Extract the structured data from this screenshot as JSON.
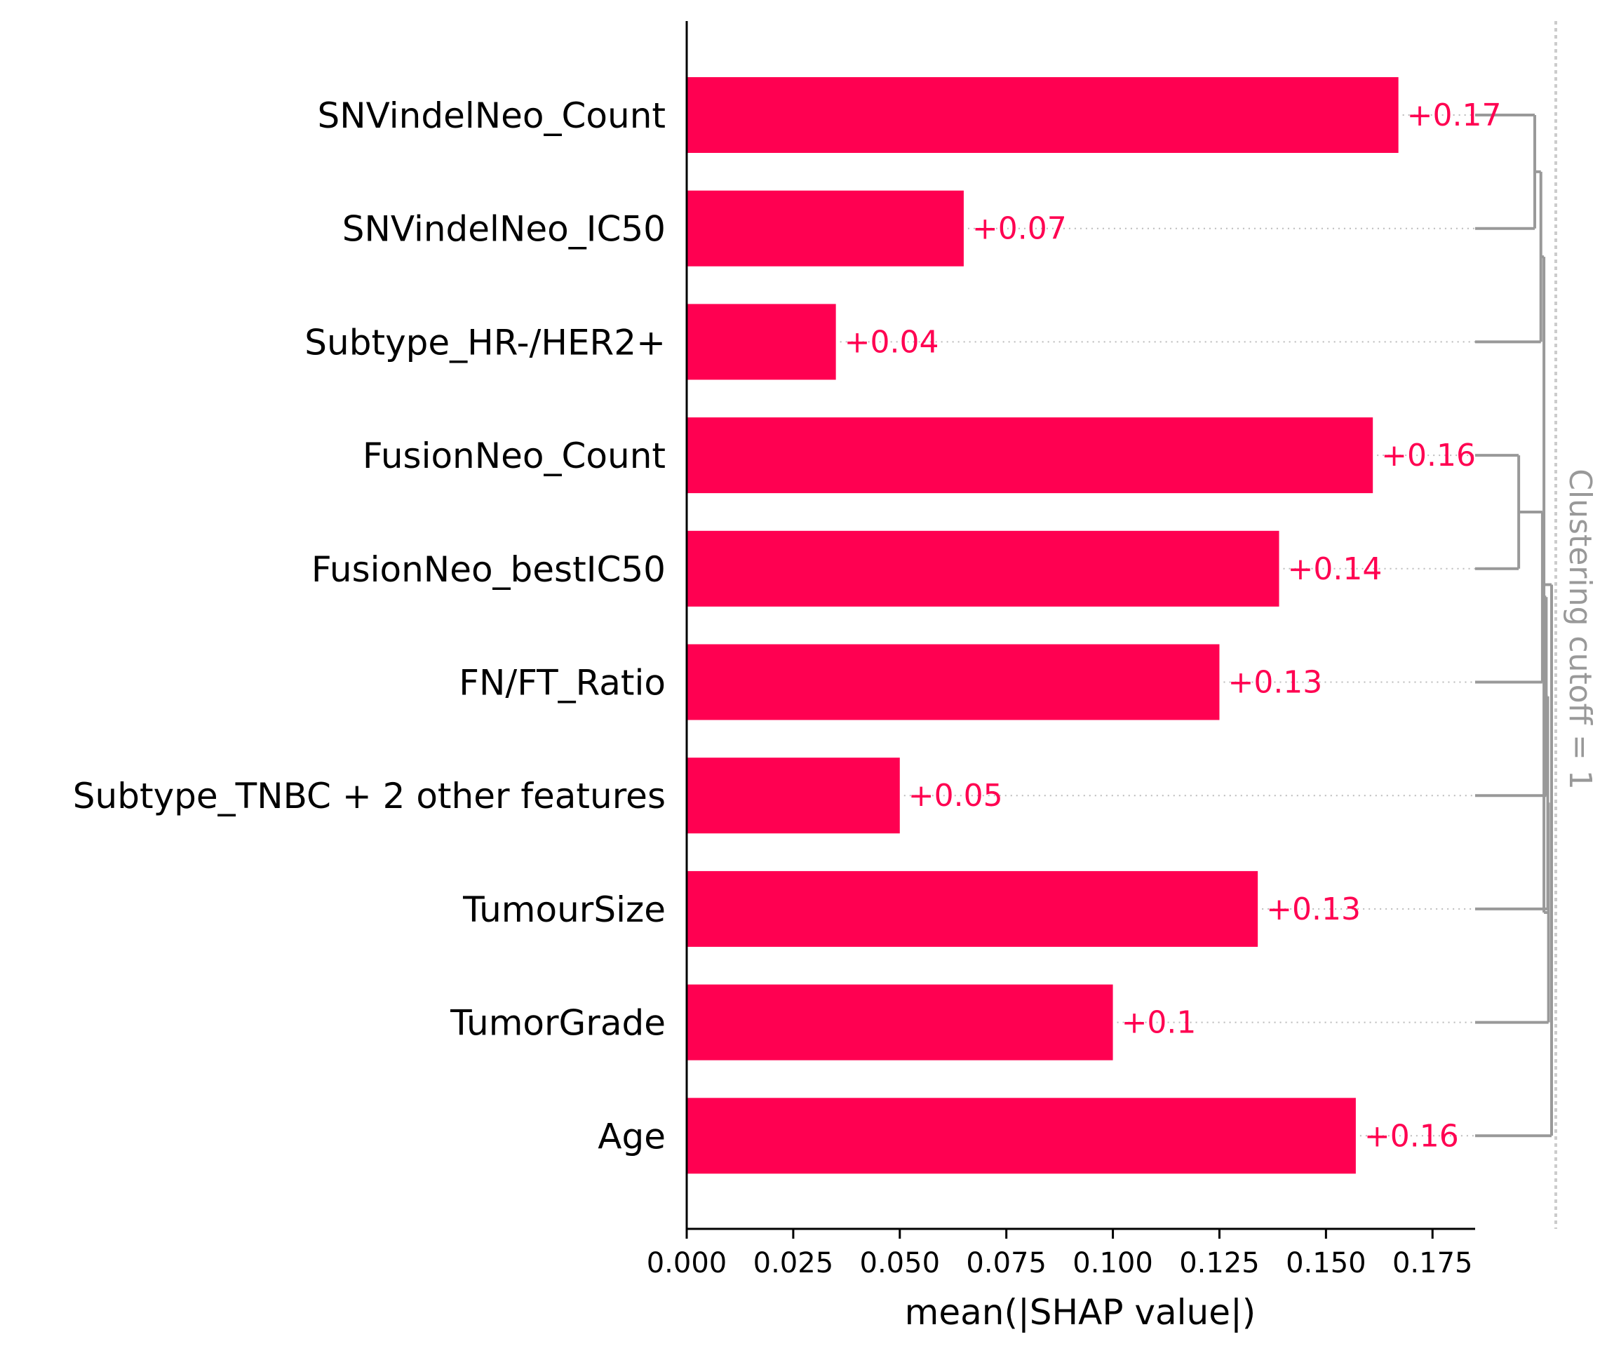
{
  "chart_data": {
    "type": "bar",
    "orientation": "horizontal",
    "categories": [
      "SNVindelNeo_Count",
      "SNVindelNeo_IC50",
      "Subtype_HR-/HER2+",
      "FusionNeo_Count",
      "FusionNeo_bestIC50",
      "FN/FT_Ratio",
      "Subtype_TNBC + 2 other features",
      "TumourSize",
      "TumorGrade",
      "Age"
    ],
    "values": [
      0.167,
      0.065,
      0.035,
      0.161,
      0.139,
      0.125,
      0.05,
      0.134,
      0.1,
      0.157
    ],
    "value_labels": [
      "+0.17",
      "+0.07",
      "+0.04",
      "+0.16",
      "+0.14",
      "+0.13",
      "+0.05",
      "+0.13",
      "+0.1",
      "+0.16"
    ],
    "xlabel": "mean(|SHAP value|)",
    "xlim": [
      0,
      0.185
    ],
    "xticks": [
      0.0,
      0.025,
      0.05,
      0.075,
      0.1,
      0.125,
      0.15,
      0.175
    ],
    "xtick_labels": [
      "0.000",
      "0.025",
      "0.050",
      "0.075",
      "0.100",
      "0.125",
      "0.150",
      "0.175"
    ],
    "bar_color": "#ff0051",
    "grid": false,
    "cutoff_label": "Clustering cutoff = 1",
    "dendrogram_color": "#999999",
    "clustering_merges": [
      {
        "a": "SNVindelNeo_Count",
        "b": "SNVindelNeo_IC50",
        "distance": 0.78
      },
      {
        "a": "FusionNeo_Count",
        "b": "FusionNeo_bestIC50",
        "distance": 0.57
      },
      {
        "c1": "SNVindelNeo_Count+SNVindelNeo_IC50",
        "c2": "Subtype_HR-/HER2+",
        "distance": 0.86
      },
      {
        "c1": "FusionNeo_Count+FusionNeo_bestIC50",
        "c2": "FN/FT_Ratio",
        "distance": 0.88
      },
      {
        "c1": "FusionNeo cluster",
        "c2": "Subtype_TNBC + 2 other features",
        "distance": 0.93
      },
      {
        "c1": "FusionNeo cluster",
        "c2": "TumourSize",
        "distance": 0.95
      },
      {
        "c1": "FusionNeo cluster",
        "c2": "TumorGrade",
        "distance": 0.96
      },
      {
        "c1": "FusionNeo cluster",
        "c2": "SNVindelNeo cluster",
        "distance": 0.9
      },
      {
        "c1": "all but Age",
        "c2": "Age",
        "distance": 1.0
      }
    ]
  }
}
